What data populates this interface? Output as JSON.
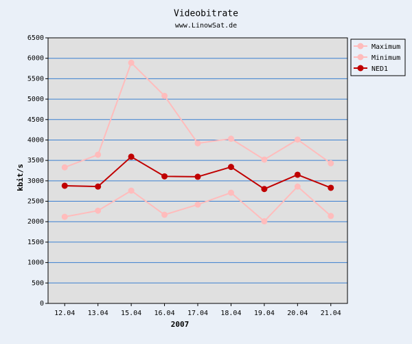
{
  "chart_data": {
    "type": "line",
    "title": "Videobitrate",
    "subtitle": "www.LinowSat.de",
    "y_label": "kbit/s",
    "x_label": "2007",
    "categories": [
      "12.04",
      "13.04",
      "15.04",
      "16.04",
      "17.04",
      "18.04",
      "19.04",
      "20.04",
      "21.04"
    ],
    "series": [
      {
        "name": "Maximum",
        "color": "#ffbcbc",
        "values": [
          3330,
          3640,
          5890,
          5080,
          3920,
          4030,
          3520,
          4010,
          3430
        ]
      },
      {
        "name": "Minimum",
        "color": "#ffbcbc",
        "values": [
          2120,
          2270,
          2760,
          2170,
          2420,
          2710,
          2010,
          2860,
          2140
        ]
      },
      {
        "name": "NED1",
        "color": "#c00000",
        "values": [
          2880,
          2860,
          3590,
          3110,
          3100,
          3340,
          2800,
          3150,
          2830
        ]
      }
    ],
    "ylim": [
      0,
      6500
    ],
    "yticks": [
      0,
      500,
      1000,
      1500,
      2000,
      2500,
      3000,
      3500,
      4000,
      4500,
      5000,
      5500,
      6000,
      6500
    ],
    "grid": true,
    "legend": "right"
  }
}
